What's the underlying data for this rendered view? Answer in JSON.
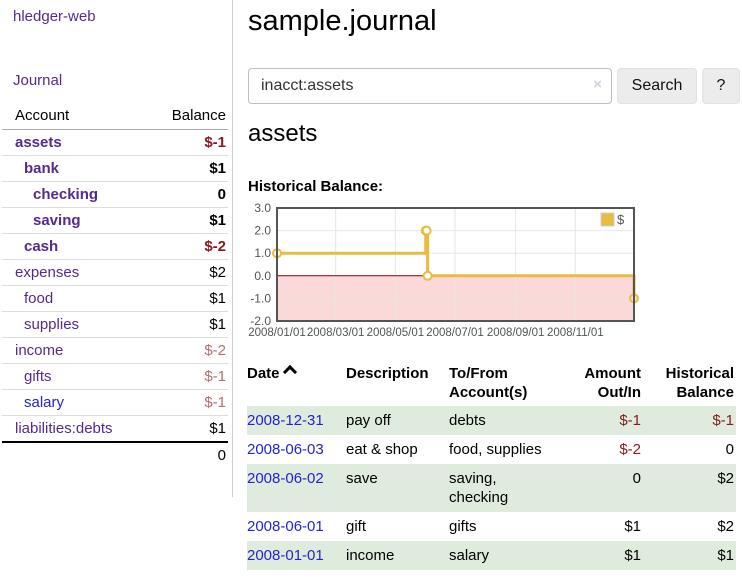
{
  "sidebar": {
    "app_title": "hledger-web",
    "nav": [
      {
        "label": "Journal"
      }
    ],
    "accounts_table": {
      "headers": {
        "account": "Account",
        "balance": "Balance"
      },
      "rows": [
        {
          "name": "assets",
          "indent": 1,
          "bold": true,
          "link_color": "purple",
          "balance": "$-1",
          "balance_class": "negative-strong"
        },
        {
          "name": "bank",
          "indent": 2,
          "bold": true,
          "link_color": "purple",
          "balance": "$1",
          "balance_class": "positive"
        },
        {
          "name": "checking",
          "indent": 3,
          "bold": true,
          "link_color": "purple",
          "balance": "0",
          "balance_class": "positive"
        },
        {
          "name": "saving",
          "indent": 3,
          "bold": true,
          "link_color": "purple",
          "balance": "$1",
          "balance_class": "positive"
        },
        {
          "name": "cash",
          "indent": 2,
          "bold": true,
          "link_color": "purple",
          "balance": "$-2",
          "balance_class": "negative-strong"
        },
        {
          "name": "expenses",
          "indent": 1,
          "bold": false,
          "link_color": "purple",
          "balance": "$2",
          "balance_class": "positive"
        },
        {
          "name": "food",
          "indent": 2,
          "bold": false,
          "link_color": "purple",
          "balance": "$1",
          "balance_class": "positive"
        },
        {
          "name": "supplies",
          "indent": 2,
          "bold": false,
          "link_color": "purple",
          "balance": "$1",
          "balance_class": "positive"
        },
        {
          "name": "income",
          "indent": 1,
          "bold": false,
          "link_color": "purple",
          "balance": "$-2",
          "balance_class": "negative-soft"
        },
        {
          "name": "gifts",
          "indent": 2,
          "bold": false,
          "link_color": "purple",
          "balance": "$-1",
          "balance_class": "negative-soft"
        },
        {
          "name": "salary",
          "indent": 2,
          "bold": false,
          "link_color": "blue",
          "balance": "$-1",
          "balance_class": "negative-soft"
        },
        {
          "name": "liabilities:debts",
          "indent": 1,
          "bold": false,
          "link_color": "purple",
          "balance": "$1",
          "balance_class": "positive"
        }
      ],
      "total": "0"
    }
  },
  "header": {
    "title": "sample.journal"
  },
  "search": {
    "value": "inacct:assets",
    "clear_icon": "×",
    "button_label": "Search",
    "help_label": "?"
  },
  "account_page": {
    "heading": "assets",
    "chart_label": "Historical Balance:"
  },
  "chart_data": {
    "type": "line",
    "style": "step",
    "title": "Historical Balance:",
    "series": [
      {
        "name": "$",
        "color": "#e8bd3f",
        "points": [
          [
            "2008-01-01",
            1.0
          ],
          [
            "2008-06-01",
            2.0
          ],
          [
            "2008-06-02",
            2.0
          ],
          [
            "2008-06-03",
            0.0
          ],
          [
            "2008-12-31",
            -1.0
          ]
        ]
      }
    ],
    "ylim": [
      -2,
      3
    ],
    "yticks": [
      3.0,
      2.0,
      1.0,
      0.0,
      -1.0,
      -2.0
    ],
    "xticks": [
      {
        "date": "2008-01-01",
        "label": "2008/01/01"
      },
      {
        "date": "2008-03-01",
        "label": "2008/03/01"
      },
      {
        "date": "2008-05-01",
        "label": "2008/05/01"
      },
      {
        "date": "2008-07-01",
        "label": "2008/07/01"
      },
      {
        "date": "2008-09-01",
        "label": "2008/09/01"
      },
      {
        "date": "2008-11-01",
        "label": "2008/11/01"
      }
    ],
    "x_range": [
      "2008-01-01",
      "2008-12-31"
    ],
    "legend": {
      "position": "top-right",
      "label": "$"
    },
    "grid": true,
    "negative_region_fill": "#fbd9d9",
    "zero_line_color": "#8b0000"
  },
  "register": {
    "columns": [
      "Date",
      "Description",
      "To/From Account(s)",
      "Amount Out/In",
      "Historical Balance"
    ],
    "sort_icon": "chevron-up",
    "rows": [
      {
        "date": "2008-12-31",
        "description": "pay off",
        "accounts": "debts",
        "amount": "$-1",
        "balance": "$-1"
      },
      {
        "date": "2008-06-03",
        "description": "eat & shop",
        "accounts": "food, supplies",
        "amount": "$-2",
        "balance": "0"
      },
      {
        "date": "2008-06-02",
        "description": "save",
        "accounts": "saving, checking",
        "amount": "0",
        "balance": "$2"
      },
      {
        "date": "2008-06-01",
        "description": "gift",
        "accounts": "gifts",
        "amount": "$1",
        "balance": "$2"
      },
      {
        "date": "2008-01-01",
        "description": "income",
        "accounts": "salary",
        "amount": "$1",
        "balance": "$1"
      }
    ]
  },
  "colors": {
    "link_purple": "#552a8e",
    "link_blue": "#2323d2",
    "negative_strong": "#8a1a21",
    "negative_soft": "#b26f6f",
    "row_stripe_green": "#dfecdd",
    "chart_line": "#e8bd3f",
    "chart_negative_region": "#fbd9d9",
    "chart_zero_line": "#8b0000"
  }
}
